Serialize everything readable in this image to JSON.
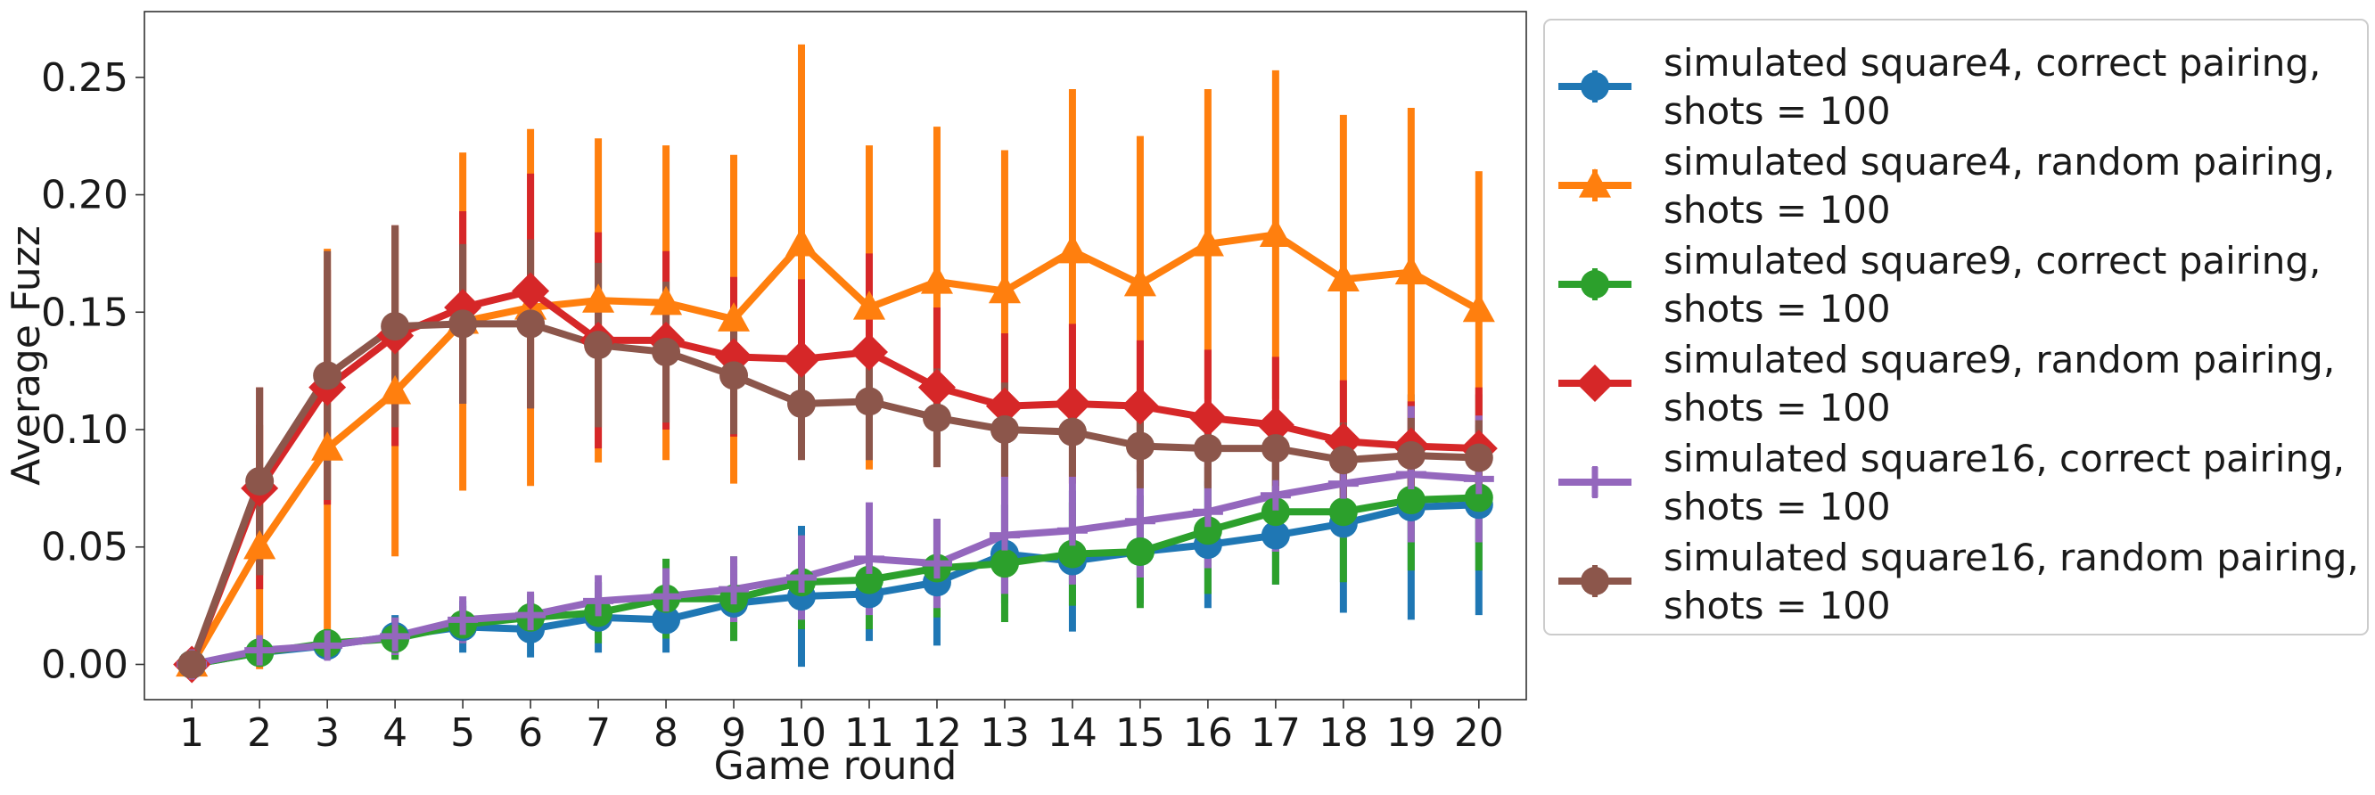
{
  "chart_data": {
    "type": "line",
    "xlabel": "Game round",
    "ylabel": "Average Fuzz",
    "xlim": [
      0.3,
      20.7
    ],
    "ylim": [
      -0.015,
      0.278
    ],
    "x": [
      1,
      2,
      3,
      4,
      5,
      6,
      7,
      8,
      9,
      10,
      11,
      12,
      13,
      14,
      15,
      16,
      17,
      18,
      19,
      20
    ],
    "x_ticks": [
      "1",
      "2",
      "3",
      "4",
      "5",
      "6",
      "7",
      "8",
      "9",
      "10",
      "11",
      "12",
      "13",
      "14",
      "15",
      "16",
      "17",
      "18",
      "19",
      "20"
    ],
    "y_ticks": [
      0.0,
      0.05,
      0.1,
      0.15,
      0.2,
      0.25
    ],
    "y_tick_labels": [
      "0.00",
      "0.05",
      "0.10",
      "0.15",
      "0.20",
      "0.25"
    ],
    "grid": false,
    "legend_position": "outside-right",
    "series": [
      {
        "name_line1": "simulated square4, correct pairing,",
        "name_line2": "shots = 100",
        "color": "#1f77b4",
        "marker": "circle",
        "values": [
          0.0,
          0.005,
          0.008,
          0.012,
          0.016,
          0.015,
          0.02,
          0.019,
          0.026,
          0.029,
          0.03,
          0.035,
          0.047,
          0.044,
          0.048,
          0.051,
          0.055,
          0.06,
          0.067,
          0.068
        ],
        "err": [
          0.0,
          0.003,
          0.006,
          0.009,
          0.011,
          0.012,
          0.015,
          0.014,
          0.016,
          0.03,
          0.02,
          0.027,
          0.021,
          0.03,
          0.022,
          0.027,
          0.021,
          0.038,
          0.048,
          0.047
        ]
      },
      {
        "name_line1": "simulated square4, random pairing,",
        "name_line2": "shots = 100",
        "color": "#ff7f0e",
        "marker": "triangle",
        "values": [
          0.0,
          0.05,
          0.092,
          0.116,
          0.146,
          0.152,
          0.155,
          0.154,
          0.147,
          0.179,
          0.152,
          0.163,
          0.159,
          0.176,
          0.162,
          0.179,
          0.183,
          0.164,
          0.167,
          0.151
        ],
        "err": [
          0.0,
          0.052,
          0.085,
          0.07,
          0.072,
          0.076,
          0.069,
          0.067,
          0.07,
          0.085,
          0.069,
          0.066,
          0.06,
          0.069,
          0.063,
          0.066,
          0.07,
          0.07,
          0.07,
          0.059
        ]
      },
      {
        "name_line1": "simulated square9, correct pairing,",
        "name_line2": "shots = 100",
        "color": "#2ca02c",
        "marker": "circle",
        "values": [
          0.0,
          0.005,
          0.009,
          0.011,
          0.017,
          0.02,
          0.022,
          0.028,
          0.028,
          0.035,
          0.036,
          0.041,
          0.043,
          0.047,
          0.048,
          0.057,
          0.065,
          0.065,
          0.07,
          0.071
        ],
        "err": [
          0.0,
          0.004,
          0.006,
          0.009,
          0.008,
          0.01,
          0.013,
          0.017,
          0.018,
          0.02,
          0.021,
          0.021,
          0.025,
          0.022,
          0.024,
          0.027,
          0.031,
          0.03,
          0.03,
          0.031
        ]
      },
      {
        "name_line1": "simulated square9, random pairing,",
        "name_line2": "shots = 100",
        "color": "#d62728",
        "marker": "diamond",
        "values": [
          0.0,
          0.075,
          0.118,
          0.14,
          0.152,
          0.159,
          0.138,
          0.138,
          0.131,
          0.13,
          0.133,
          0.118,
          0.11,
          0.111,
          0.11,
          0.105,
          0.102,
          0.095,
          0.093,
          0.092
        ],
        "err": [
          0.0,
          0.043,
          0.05,
          0.047,
          0.041,
          0.05,
          0.046,
          0.038,
          0.034,
          0.034,
          0.042,
          0.034,
          0.031,
          0.034,
          0.028,
          0.029,
          0.029,
          0.026,
          0.019,
          0.026
        ]
      },
      {
        "name_line1": "simulated square16, correct pairing,",
        "name_line2": "shots = 100",
        "color": "#9467bd",
        "marker": "plus",
        "values": [
          0.0,
          0.006,
          0.008,
          0.012,
          0.019,
          0.021,
          0.027,
          0.029,
          0.032,
          0.037,
          0.045,
          0.043,
          0.055,
          0.057,
          0.061,
          0.065,
          0.072,
          0.077,
          0.081,
          0.079
        ],
        "err": [
          0.0,
          0.004,
          0.006,
          0.008,
          0.01,
          0.01,
          0.011,
          0.012,
          0.014,
          0.018,
          0.024,
          0.019,
          0.025,
          0.023,
          0.024,
          0.024,
          0.024,
          0.023,
          0.029,
          0.027
        ]
      },
      {
        "name_line1": "simulated square16, random pairing,",
        "name_line2": "shots = 100",
        "color": "#8c564b",
        "marker": "circle",
        "values": [
          0.0,
          0.078,
          0.123,
          0.144,
          0.145,
          0.145,
          0.136,
          0.133,
          0.123,
          0.111,
          0.112,
          0.105,
          0.1,
          0.099,
          0.093,
          0.092,
          0.092,
          0.087,
          0.089,
          0.088
        ],
        "err": [
          0.0,
          0.04,
          0.053,
          0.043,
          0.034,
          0.036,
          0.035,
          0.03,
          0.025,
          0.024,
          0.025,
          0.021,
          0.02,
          0.019,
          0.018,
          0.017,
          0.016,
          0.016,
          0.016,
          0.016
        ]
      }
    ]
  }
}
